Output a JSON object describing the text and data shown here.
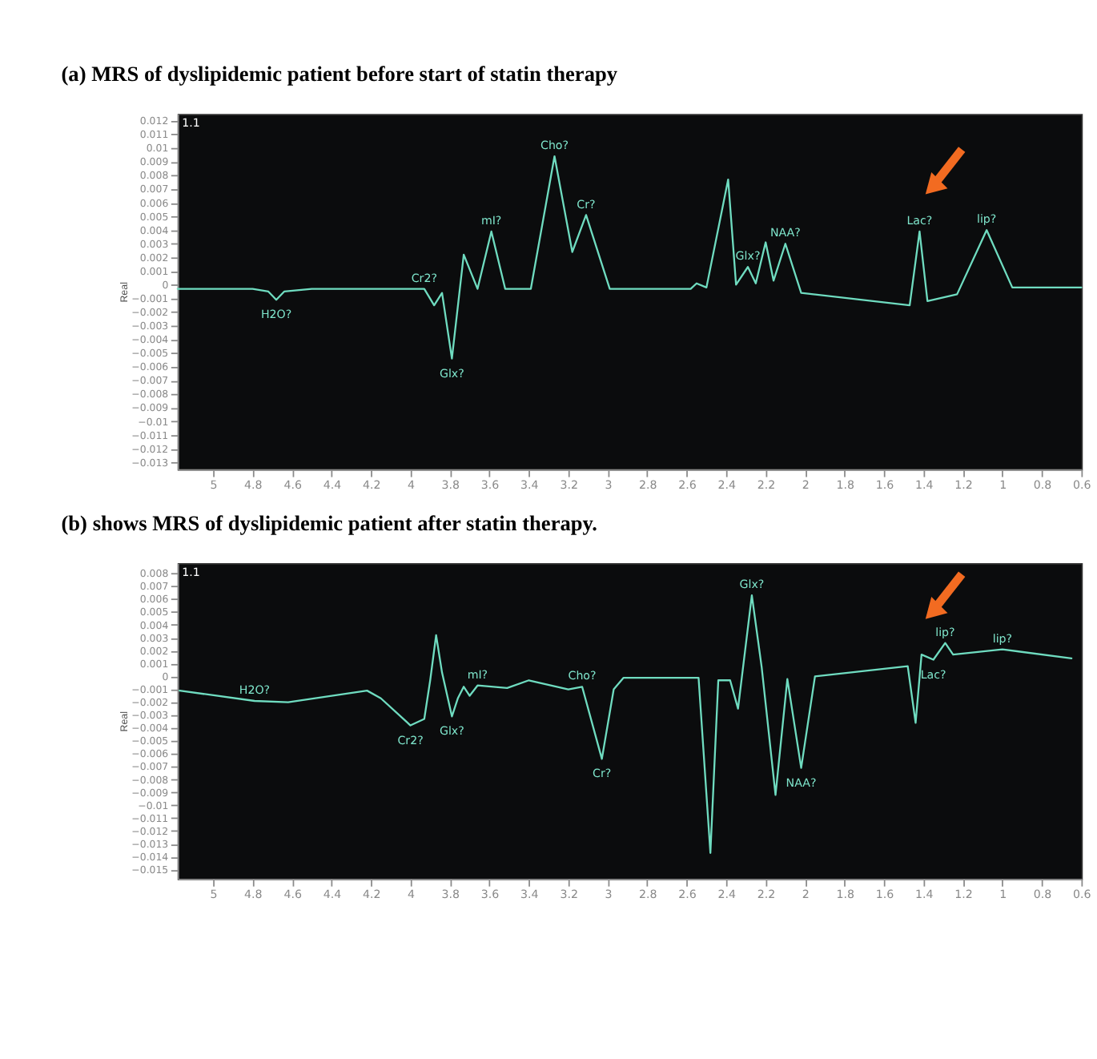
{
  "chart_data": [
    {
      "type": "line",
      "title": "(a) MRS of dyslipidemic patient before start of statin therapy",
      "ylabel": "Real",
      "xlim": [
        5.18,
        0.6
      ],
      "xticks": [
        5,
        4.8,
        4.6,
        4.4,
        4.2,
        4,
        3.8,
        3.6,
        3.4,
        3.2,
        3,
        2.8,
        2.6,
        2.4,
        2.2,
        2,
        1.8,
        1.6,
        1.4,
        1.2,
        1,
        0.8,
        0.6
      ],
      "ylim": [
        -0.0135,
        0.0125
      ],
      "yticks": [
        0.012,
        0.011,
        0.01,
        0.009,
        0.008,
        0.007,
        0.006,
        0.005,
        0.004,
        0.003,
        0.002,
        0.001,
        0,
        -0.001,
        -0.002,
        -0.003,
        -0.004,
        -0.005,
        -0.006,
        -0.007,
        -0.008,
        -0.009,
        -0.01,
        -0.011,
        -0.012,
        -0.013
      ],
      "series": [
        {
          "color": "#6fdcc0",
          "x": [
            5.18,
            4.8,
            4.72,
            4.68,
            4.64,
            4.5,
            3.93,
            3.88,
            3.84,
            3.79,
            3.73,
            3.66,
            3.59,
            3.52,
            3.39,
            3.27,
            3.18,
            3.11,
            2.99,
            2.58,
            2.55,
            2.5,
            2.39,
            2.35,
            2.29,
            2.25,
            2.2,
            2.16,
            2.1,
            2.02,
            1.47,
            1.42,
            1.38,
            1.23,
            1.08,
            0.95,
            0.6
          ],
          "values": [
            -0.0003,
            -0.0003,
            -0.0005,
            -0.0011,
            -0.0005,
            -0.0003,
            -0.0003,
            -0.0015,
            -0.0006,
            -0.0054,
            0.0022,
            -0.0003,
            0.0039,
            -0.0003,
            -0.0003,
            0.0094,
            0.0024,
            0.0051,
            -0.0003,
            -0.0003,
            0.0001,
            -0.0002,
            0.0077,
            0.0,
            0.0013,
            0.0001,
            0.0031,
            0.0003,
            0.003,
            -0.0006,
            -0.0015,
            0.0039,
            -0.0012,
            -0.0007,
            0.004,
            -0.0002,
            -0.0002
          ]
        }
      ],
      "annotations": [
        "1.1",
        {
          "text": "H2O?",
          "x": 4.68,
          "y": -0.0011
        },
        {
          "text": "Cr2?",
          "x": 3.93,
          "y": -0.0003
        },
        {
          "text": "Glx?",
          "x": 3.79,
          "y": -0.0054
        },
        {
          "text": "mI?",
          "x": 3.59,
          "y": 0.0039
        },
        {
          "text": "Cho?",
          "x": 3.27,
          "y": 0.0094
        },
        {
          "text": "Cr?",
          "x": 3.11,
          "y": 0.0051
        },
        {
          "text": "Glx?",
          "x": 2.29,
          "y": 0.0013
        },
        {
          "text": "NAA?",
          "x": 2.1,
          "y": 0.003
        },
        {
          "text": "Lac?",
          "x": 1.42,
          "y": 0.0039
        },
        {
          "text": "lip?",
          "x": 1.08,
          "y": 0.004
        }
      ],
      "grid": false,
      "legend": false
    },
    {
      "type": "line",
      "title": "(b) shows MRS of dyslipidemic patient after statin therapy.",
      "ylabel": "Real",
      "xlim": [
        5.18,
        0.6
      ],
      "xticks": [
        5,
        4.8,
        4.6,
        4.4,
        4.2,
        4,
        3.8,
        3.6,
        3.4,
        3.2,
        3,
        2.8,
        2.6,
        2.4,
        2.2,
        2,
        1.8,
        1.6,
        1.4,
        1.2,
        1,
        0.8,
        0.6
      ],
      "ylim": [
        -0.0157,
        0.0088
      ],
      "yticks": [
        0.008,
        0.007,
        0.006,
        0.005,
        0.004,
        0.003,
        0.002,
        0.001,
        0,
        -0.001,
        -0.002,
        -0.003,
        -0.004,
        -0.005,
        -0.006,
        -0.007,
        -0.008,
        -0.009,
        -0.01,
        -0.011,
        -0.012,
        -0.013,
        -0.014,
        -0.015
      ],
      "series": [
        {
          "color": "#6fdcc0",
          "x": [
            5.17,
            4.79,
            4.62,
            4.22,
            4.15,
            4.0,
            3.93,
            3.9,
            3.87,
            3.84,
            3.79,
            3.76,
            3.73,
            3.7,
            3.66,
            3.51,
            3.4,
            3.2,
            3.13,
            3.03,
            2.97,
            2.92,
            2.54,
            2.48,
            2.44,
            2.38,
            2.34,
            2.27,
            2.22,
            2.15,
            2.09,
            2.02,
            1.95,
            1.48,
            1.44,
            1.41,
            1.35,
            1.29,
            1.25,
            1.0,
            0.65
          ],
          "values": [
            -0.0011,
            -0.0019,
            -0.002,
            -0.0011,
            -0.0017,
            -0.0038,
            -0.0033,
            -0.0003,
            0.0032,
            0.0003,
            -0.0031,
            -0.0017,
            -0.0008,
            -0.0015,
            -0.0007,
            -0.0009,
            -0.0003,
            -0.001,
            -0.0008,
            -0.0064,
            -0.001,
            -0.0001,
            -0.0001,
            -0.0137,
            -0.0003,
            -0.0003,
            -0.0025,
            0.0063,
            0.0007,
            -0.0092,
            -0.0002,
            -0.0071,
            0.0,
            0.0008,
            -0.0036,
            0.0017,
            0.0013,
            0.0026,
            0.0017,
            0.0021,
            0.0014
          ]
        }
      ],
      "annotations": [
        "1.1",
        {
          "text": "H2O?",
          "x": 4.79,
          "y": -0.0019
        },
        {
          "text": "Cr2?",
          "x": 4.0,
          "y": -0.0038
        },
        {
          "text": "Glx?",
          "x": 3.79,
          "y": -0.0031
        },
        {
          "text": "mI?",
          "x": 3.66,
          "y": -0.0007
        },
        {
          "text": "Cho?",
          "x": 3.13,
          "y": -0.0008
        },
        {
          "text": "Cr?",
          "x": 3.03,
          "y": -0.0064
        },
        {
          "text": "Glx?",
          "x": 2.27,
          "y": 0.0063
        },
        {
          "text": "NAA?",
          "x": 2.02,
          "y": -0.0071
        },
        {
          "text": "Lac?",
          "x": 1.35,
          "y": 0.0013
        },
        {
          "text": "lip?",
          "x": 1.29,
          "y": 0.0026
        },
        {
          "text": "lip?",
          "x": 1.0,
          "y": 0.0021
        }
      ],
      "grid": false,
      "legend": false
    }
  ]
}
